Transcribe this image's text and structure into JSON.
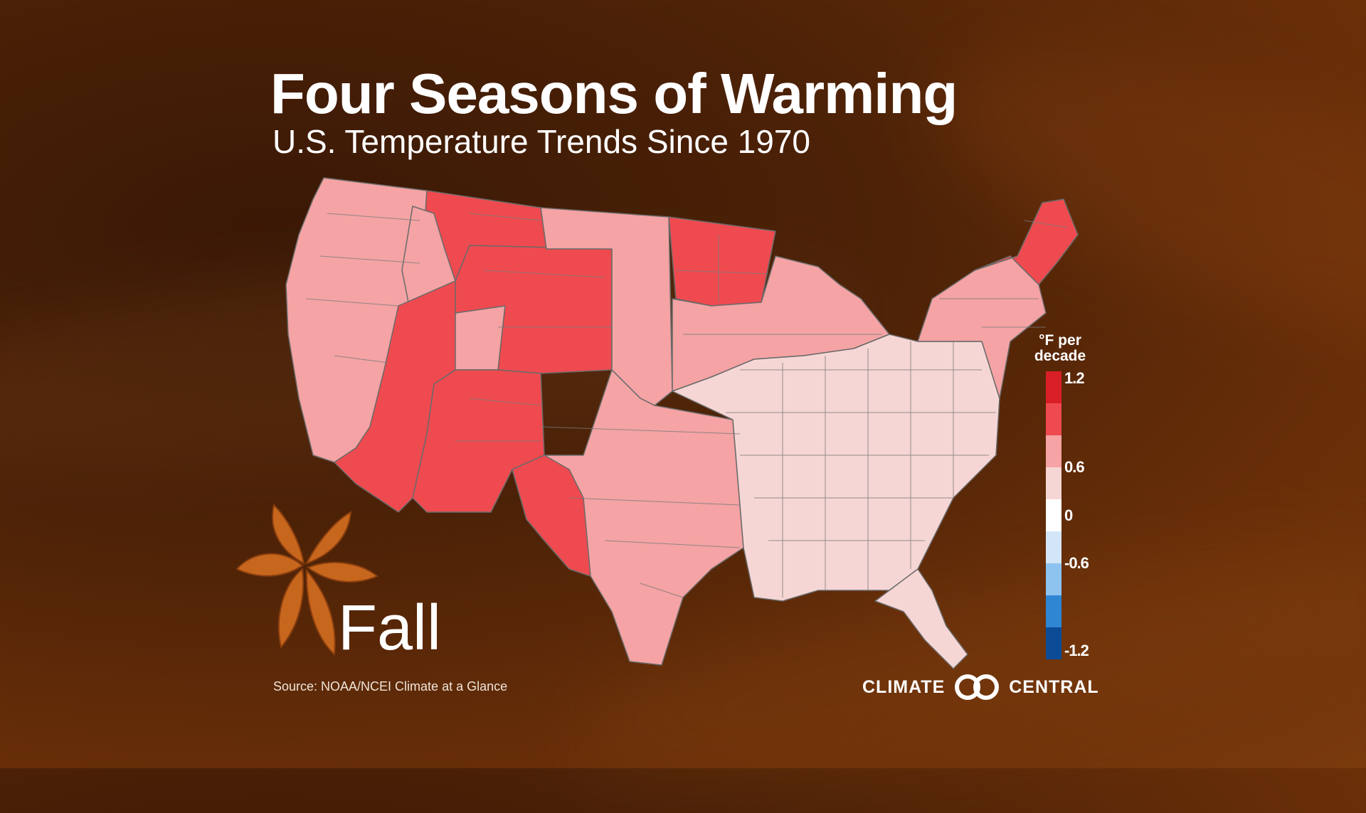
{
  "title": "Four Seasons of Warming",
  "subtitle": "U.S. Temperature Trends Since 1970",
  "season": "Fall",
  "source": "Source:  NOAA/NCEI Climate at a Glance",
  "legend": {
    "title_line1": "°F per",
    "title_line2": "decade",
    "labels": [
      "1.2",
      "0.6",
      "0",
      "-0.6",
      "-1.2"
    ],
    "bins": [
      {
        "range": "1.05 to 1.2",
        "color": "#d91f26"
      },
      {
        "range": "0.9 to 1.05",
        "color": "#ef4a4f"
      },
      {
        "range": "0.6 to 0.9",
        "color": "#f5a3a4"
      },
      {
        "range": "0.3 to 0.6",
        "color": "#f6d6d5"
      },
      {
        "range": "0 to 0.3",
        "color": "#ffffff"
      },
      {
        "range": "-0.3 to 0",
        "color": "#d2e6f8"
      },
      {
        "range": "-0.6 to -0.3",
        "color": "#8ec3ef"
      },
      {
        "range": "-0.9 to -0.6",
        "color": "#2f86d3"
      },
      {
        "range": "-1.2 to -0.9",
        "color": "#0c4c97"
      }
    ]
  },
  "logo": {
    "left": "CLIMATE",
    "right": "CENTRAL"
  },
  "map": {
    "regions": [
      {
        "name": "west-coast",
        "trend_bin": "0.6 to 0.9"
      },
      {
        "name": "northern-rockies",
        "trend_bin": "0.9 to 1.05"
      },
      {
        "name": "idaho",
        "trend_bin": "0.6 to 0.9"
      },
      {
        "name": "nevada-arizona",
        "trend_bin": "0.9 to 1.05"
      },
      {
        "name": "utah",
        "trend_bin": "0.6 to 0.9"
      },
      {
        "name": "colorado-wyoming",
        "trend_bin": "0.9 to 1.05"
      },
      {
        "name": "new-mexico",
        "trend_bin": "0.9 to 1.05"
      },
      {
        "name": "great-plains",
        "trend_bin": "0.6 to 0.9"
      },
      {
        "name": "texas",
        "trend_bin": "0.6 to 0.9"
      },
      {
        "name": "west-texas",
        "trend_bin": "0.9 to 1.05"
      },
      {
        "name": "minnesota",
        "trend_bin": "0.9 to 1.05"
      },
      {
        "name": "great-lakes",
        "trend_bin": "0.6 to 0.9"
      },
      {
        "name": "midwest-south-east",
        "trend_bin": "0.3 to 0.6"
      },
      {
        "name": "florida",
        "trend_bin": "0.3 to 0.6"
      },
      {
        "name": "northeast",
        "trend_bin": "0.6 to 0.9"
      },
      {
        "name": "new-england",
        "trend_bin": "0.9 to 1.05"
      }
    ]
  }
}
